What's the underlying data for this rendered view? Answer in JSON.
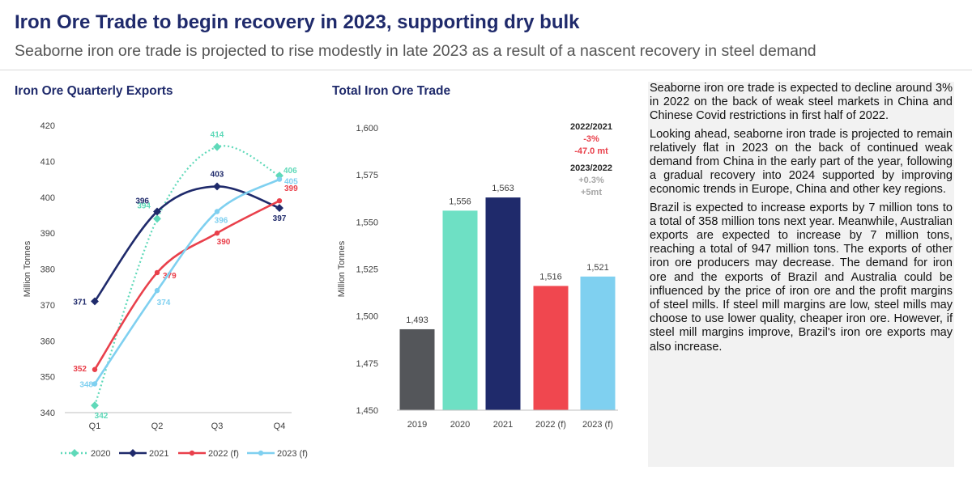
{
  "header": {
    "title": "Iron Ore Trade to begin recovery in 2023, supporting dry bulk",
    "subtitle": "Seaborne iron ore trade is projected to rise modestly in late 2023 as a result of a nascent recovery in steel demand"
  },
  "colors": {
    "s2020": "#5fd9b9",
    "s2021": "#1f2a6b",
    "s2022": "#e9404b",
    "s2023": "#7fd0f0",
    "bar2019": "#54565a",
    "bar2020": "#6ee0c4",
    "bar2021": "#1f2a6b",
    "bar2022": "#f0474f",
    "bar2023": "#7fd0f0"
  },
  "chart_data": [
    {
      "type": "line",
      "title": "Iron Ore Quarterly Exports",
      "categories": [
        "Q1",
        "Q2",
        "Q3",
        "Q4"
      ],
      "ylabel": "Million Tonnes",
      "xlabel": "",
      "ylim": [
        340,
        420
      ],
      "yticks": [
        340,
        350,
        360,
        370,
        380,
        390,
        400,
        410,
        420
      ],
      "grid": false,
      "legend": "bottom",
      "series": [
        {
          "name": "2020",
          "values": [
            342,
            394,
            414,
            406
          ],
          "style": "dotted"
        },
        {
          "name": "2021",
          "values": [
            371,
            396,
            403,
            397
          ],
          "style": "solid"
        },
        {
          "name": "2022 (f)",
          "values": [
            352,
            379,
            390,
            399
          ],
          "style": "solid"
        },
        {
          "name": "2023 (f)",
          "values": [
            348,
            374,
            396,
            405
          ],
          "style": "solid"
        }
      ]
    },
    {
      "type": "bar",
      "title": "Total Iron Ore Trade",
      "categories": [
        "2019",
        "2020",
        "2021",
        "2022 (f)",
        "2023 (f)"
      ],
      "values": [
        1493,
        1556,
        1563,
        1516,
        1521
      ],
      "value_labels": [
        "1,493",
        "1,556",
        "1,563",
        "1,516",
        "1,521"
      ],
      "ylabel": "Million Tonnes",
      "ylim": [
        1450,
        1600
      ],
      "yticks": [
        1450,
        1475,
        1500,
        1525,
        1550,
        1575,
        1600
      ],
      "ytick_labels": [
        "1,450",
        "1,475",
        "1,500",
        "1,525",
        "1,550",
        "1,575",
        "1,600"
      ],
      "grid": false,
      "annotations": {
        "a1_head": "2022/2021",
        "a1_pct": "-3%",
        "a1_val": "-47.0 mt",
        "a2_head": "2023/2022",
        "a2_pct": "+0.3%",
        "a2_val": "+5mt"
      }
    }
  ],
  "commentary": {
    "p1": "Seaborne iron ore trade is expected to decline around 3% in 2022 on the back of weak steel markets in China and Chinese Covid restrictions in first half of 2022.",
    "p2": "Looking ahead, seaborne iron trade is projected to remain relatively flat in 2023 on the back of continued weak demand from China in the early part of the year, following a gradual recovery into 2024 supported by improving economic trends in Europe, China and other key regions.",
    "p3": "Brazil is expected to increase exports by 7 million tons to a total of 358 million tons next year. Meanwhile, Australian exports are expected to increase by 7 million tons, reaching a total of 947 million tons. The exports of other iron ore producers may decrease. The demand for iron ore and the exports of Brazil and Australia could be influenced by the price of iron ore and the profit margins of steel mills. If steel mill margins are low, steel mills may choose to use lower quality, cheaper iron ore. However, if steel mill margins improve, Brazil's iron ore exports may also increase."
  }
}
